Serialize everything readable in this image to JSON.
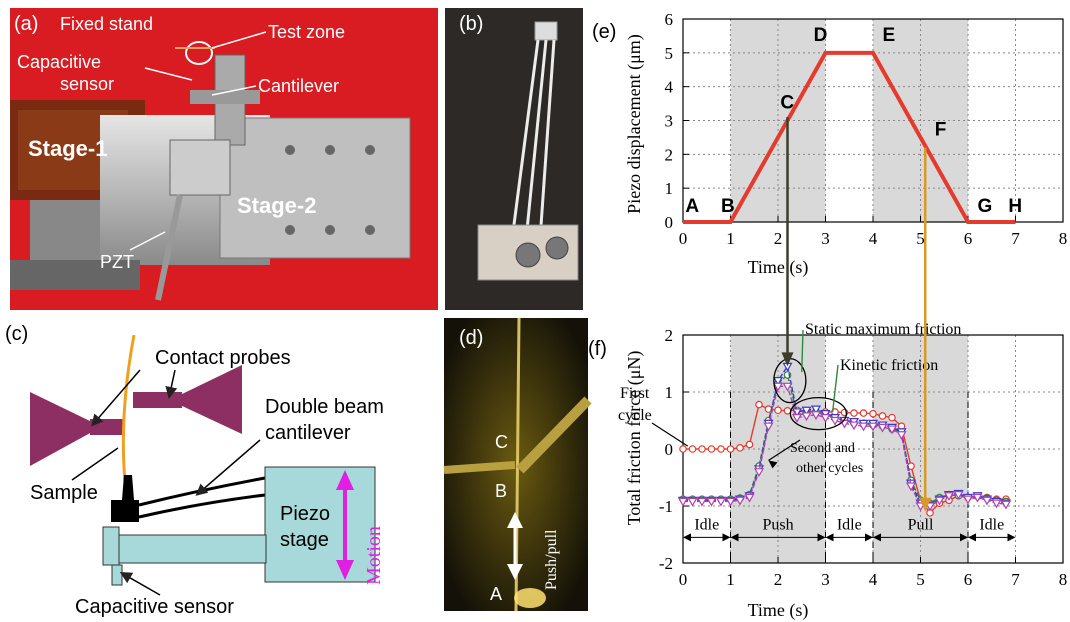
{
  "panels": {
    "a": {
      "label": "(a)",
      "callouts": {
        "fixed_stand": "Fixed stand",
        "test_zone": "Test zone",
        "capacitive_sensor_1": "Capacitive",
        "capacitive_sensor_2": "sensor",
        "cantilever": "Cantilever",
        "stage1": "Stage-1",
        "stage2": "Stage-2",
        "pzt": "PZT"
      }
    },
    "b": {
      "label": "(b)"
    },
    "c": {
      "label": "(c)",
      "callouts": {
        "contact_probes": "Contact probes",
        "double_beam_1": "Double beam",
        "double_beam_2": "cantilever",
        "sample": "Sample",
        "piezo_1": "Piezo",
        "piezo_2": "stage",
        "motion": "Motion",
        "capacitive_sensor": "Capacitive sensor"
      },
      "colors": {
        "probe": "#8e2f63",
        "sample": "#f0a020",
        "stage": "#a7d9da",
        "motion": "#e020e0"
      }
    },
    "d": {
      "label": "(d)",
      "points": [
        "C",
        "B",
        "A"
      ],
      "arrow_label": "Push/pull"
    }
  },
  "chart_data": [
    {
      "panel_label": "(e)",
      "type": "line",
      "xlabel": "Time (s)",
      "ylabel": "Piezo displacement (μm)",
      "xlim": [
        0,
        8
      ],
      "ylim": [
        0,
        6
      ],
      "xticks": [
        0,
        1,
        2,
        3,
        4,
        5,
        6,
        7,
        8
      ],
      "yticks": [
        0,
        1,
        2,
        3,
        4,
        5,
        6
      ],
      "grid": true,
      "shaded_intervals": [
        [
          1,
          3
        ],
        [
          4,
          6
        ]
      ],
      "series": [
        {
          "color": "#e53a2e",
          "x": [
            0,
            1,
            3,
            4,
            6,
            7
          ],
          "y": [
            0,
            0,
            5,
            5,
            0,
            0
          ]
        }
      ],
      "point_labels": [
        {
          "text": "A",
          "x": 0.05,
          "y": 0.3
        },
        {
          "text": "B",
          "x": 0.8,
          "y": 0.3
        },
        {
          "text": "C",
          "x": 2.05,
          "y": 3.35
        },
        {
          "text": "D",
          "x": 2.75,
          "y": 5.35
        },
        {
          "text": "E",
          "x": 4.2,
          "y": 5.35
        },
        {
          "text": "F",
          "x": 5.3,
          "y": 2.55
        },
        {
          "text": "G",
          "x": 6.2,
          "y": 0.3
        },
        {
          "text": "H",
          "x": 6.85,
          "y": 0.3
        }
      ]
    },
    {
      "panel_label": "(f)",
      "type": "line",
      "xlabel": "Time (s)",
      "ylabel": "Total friction force (μN)",
      "xlim": [
        0,
        8
      ],
      "ylim": [
        -2,
        2
      ],
      "xticks": [
        0,
        1,
        2,
        3,
        4,
        5,
        6,
        7,
        8
      ],
      "yticks": [
        -2,
        -1,
        0,
        1,
        2
      ],
      "grid": true,
      "shaded_intervals": [
        [
          1,
          3
        ],
        [
          4,
          6
        ]
      ],
      "phases": [
        {
          "label": "Idle",
          "x0": 0,
          "x1": 1
        },
        {
          "label": "Push",
          "x0": 1,
          "x1": 3
        },
        {
          "label": "Idle",
          "x0": 3,
          "x1": 4
        },
        {
          "label": "Pull",
          "x0": 4,
          "x1": 6
        },
        {
          "label": "Idle",
          "x0": 6,
          "x1": 7
        }
      ],
      "annotations": {
        "first_cycle_1": "First",
        "first_cycle_2": "cycle",
        "static_max": "Static maximum friction",
        "kinetic": "Kinetic friction",
        "second_1": "Second and",
        "second_2": "other cycles"
      },
      "series": [
        {
          "color": "#e53a2e",
          "marker": "circle",
          "x": [
            0,
            0.2,
            0.4,
            0.6,
            0.8,
            1.0,
            1.2,
            1.4,
            1.6,
            1.8,
            2.0,
            2.2,
            2.4,
            2.6,
            2.8,
            3.0,
            3.2,
            3.4,
            3.6,
            3.8,
            4.0,
            4.2,
            4.4,
            4.6,
            4.8,
            5.0,
            5.2,
            5.4,
            5.6,
            5.8,
            6.0,
            6.2,
            6.4,
            6.6,
            6.8
          ],
          "y": [
            0,
            0,
            0,
            0,
            0,
            0,
            0.02,
            0.08,
            0.78,
            0.7,
            0.68,
            0.67,
            0.68,
            0.66,
            0.66,
            0.65,
            0.65,
            0.64,
            0.63,
            0.63,
            0.62,
            0.58,
            0.55,
            0.4,
            -0.3,
            -0.9,
            -1.12,
            -0.95,
            -0.9,
            -0.82,
            -0.85,
            -0.83,
            -0.85,
            -0.88,
            -0.88
          ]
        },
        {
          "color": "#2e8b3a",
          "marker": "circle",
          "x": [
            0,
            0.2,
            0.4,
            0.6,
            0.8,
            1.0,
            1.2,
            1.4,
            1.6,
            1.8,
            2.0,
            2.2,
            2.4,
            2.6,
            2.8,
            3.0,
            3.2,
            3.4,
            3.6,
            3.8,
            4.0,
            4.2,
            4.4,
            4.6,
            4.8,
            5.0,
            5.2,
            5.4,
            5.6,
            5.8,
            6.0,
            6.2,
            6.4,
            6.6,
            6.8
          ],
          "y": [
            -0.88,
            -0.88,
            -0.88,
            -0.88,
            -0.88,
            -0.88,
            -0.86,
            -0.8,
            -0.3,
            0.5,
            1.15,
            1.3,
            0.6,
            0.62,
            0.65,
            0.6,
            0.55,
            0.5,
            0.45,
            0.45,
            0.42,
            0.4,
            0.35,
            0.3,
            -0.55,
            -0.9,
            -0.95,
            -0.85,
            -0.8,
            -0.82,
            -0.85,
            -0.83,
            -0.86,
            -0.9,
            -0.92
          ]
        },
        {
          "color": "#3a3ad0",
          "marker": "triangle",
          "x": [
            0,
            0.2,
            0.4,
            0.6,
            0.8,
            1.0,
            1.2,
            1.4,
            1.6,
            1.8,
            2.0,
            2.2,
            2.4,
            2.6,
            2.8,
            3.0,
            3.2,
            3.4,
            3.6,
            3.8,
            4.0,
            4.2,
            4.4,
            4.6,
            4.8,
            5.0,
            5.2,
            5.4,
            5.6,
            5.8,
            6.0,
            6.2,
            6.4,
            6.6,
            6.8
          ],
          "y": [
            -0.9,
            -0.9,
            -0.9,
            -0.9,
            -0.9,
            -0.9,
            -0.88,
            -0.82,
            -0.35,
            0.45,
            1.2,
            1.45,
            0.65,
            0.68,
            0.7,
            0.62,
            0.55,
            0.5,
            0.48,
            0.45,
            0.45,
            0.42,
            0.38,
            0.3,
            -0.6,
            -0.95,
            -0.98,
            -0.88,
            -0.8,
            -0.78,
            -0.85,
            -0.82,
            -0.88,
            -0.92,
            -0.95
          ]
        },
        {
          "color": "#b040b0",
          "marker": "triangle",
          "x": [
            0,
            0.2,
            0.4,
            0.6,
            0.8,
            1.0,
            1.2,
            1.4,
            1.6,
            1.8,
            2.0,
            2.2,
            2.4,
            2.6,
            2.8,
            3.0,
            3.2,
            3.4,
            3.6,
            3.8,
            4.0,
            4.2,
            4.4,
            4.6,
            4.8,
            5.0,
            5.2,
            5.4,
            5.6,
            5.8,
            6.0,
            6.2,
            6.4,
            6.6,
            6.8
          ],
          "y": [
            -0.92,
            -0.92,
            -0.92,
            -0.92,
            -0.92,
            -0.92,
            -0.9,
            -0.85,
            -0.4,
            0.4,
            1.1,
            1.1,
            0.55,
            0.58,
            0.6,
            0.55,
            0.5,
            0.45,
            0.42,
            0.4,
            0.4,
            0.38,
            0.35,
            0.25,
            -0.65,
            -1.0,
            -1.0,
            -0.9,
            -0.82,
            -0.8,
            -0.88,
            -0.85,
            -0.9,
            -0.95,
            -0.97
          ]
        }
      ]
    }
  ]
}
